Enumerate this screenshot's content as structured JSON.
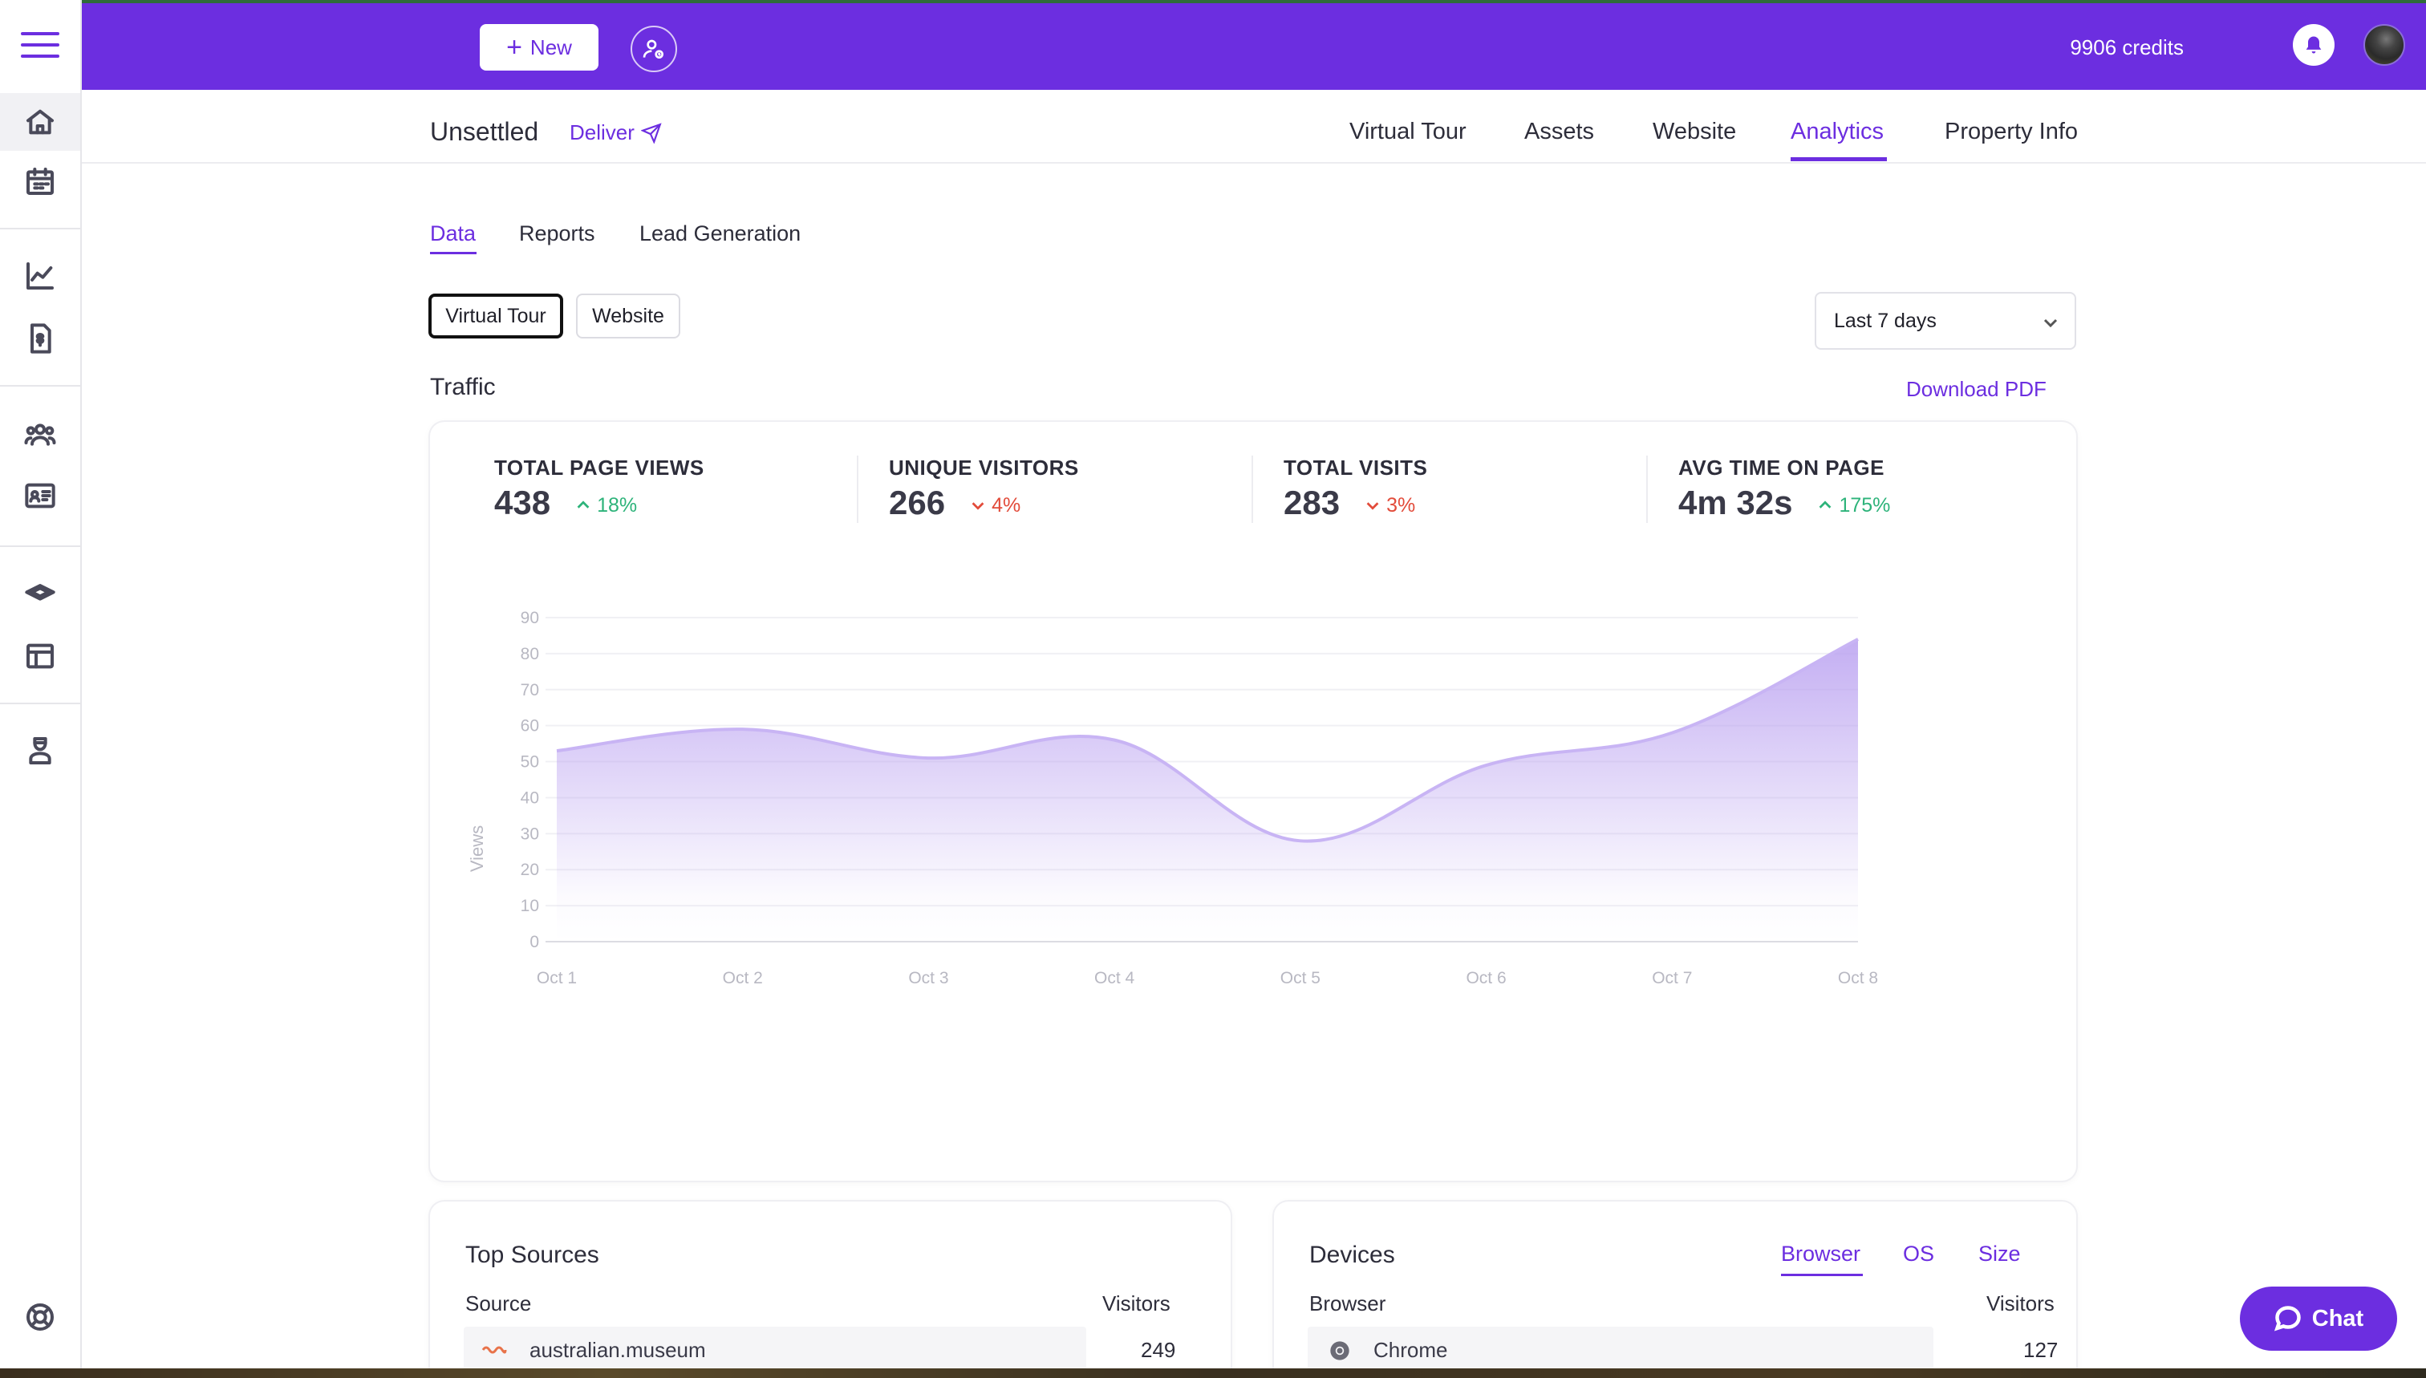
{
  "topbar": {
    "new_label": "New",
    "credits": "9906 credits"
  },
  "sidebar": {
    "items": [
      "home-icon",
      "calendar-icon",
      "line-chart-icon",
      "invoice-icon",
      "team-icon",
      "contact-card-icon",
      "layers-icon",
      "layout-icon",
      "agent-icon",
      "help-icon"
    ]
  },
  "subheader": {
    "title": "Unsettled",
    "deliver_label": "Deliver",
    "tabs": [
      {
        "label": "Virtual Tour",
        "active": false
      },
      {
        "label": "Assets",
        "active": false
      },
      {
        "label": "Website",
        "active": false
      },
      {
        "label": "Analytics",
        "active": true
      },
      {
        "label": "Property Info",
        "active": false
      }
    ]
  },
  "subtabs": [
    {
      "label": "Data",
      "active": true
    },
    {
      "label": "Reports",
      "active": false
    },
    {
      "label": "Lead Generation",
      "active": false
    }
  ],
  "segment": {
    "virtual_tour": "Virtual Tour",
    "website": "Website"
  },
  "date_range": {
    "selected": "Last 7 days"
  },
  "traffic": {
    "title": "Traffic",
    "download_label": "Download PDF",
    "stats": [
      {
        "label": "TOTAL PAGE VIEWS",
        "value": "438",
        "change": "18%",
        "direction": "up"
      },
      {
        "label": "UNIQUE VISITORS",
        "value": "266",
        "change": "4%",
        "direction": "down"
      },
      {
        "label": "TOTAL VISITS",
        "value": "283",
        "change": "3%",
        "direction": "down"
      },
      {
        "label": "AVG TIME ON PAGE",
        "value": "4m 32s",
        "change": "175%",
        "direction": "up"
      }
    ]
  },
  "chart_data": {
    "type": "area",
    "x": [
      "Oct 1",
      "Oct 2",
      "Oct 3",
      "Oct 4",
      "Oct 5",
      "Oct 6",
      "Oct 7",
      "Oct 8"
    ],
    "series": [
      {
        "values": [
          53,
          59,
          51,
          56,
          28,
          49,
          58,
          84
        ]
      }
    ],
    "ylabel": "Views",
    "ylim": [
      0,
      90
    ],
    "yticks": [
      0,
      10,
      20,
      30,
      40,
      50,
      60,
      70,
      80,
      90
    ],
    "grid": true,
    "fill_color": "#b9a0f0",
    "line_color": "#c8b4f4"
  },
  "top_sources": {
    "title": "Top Sources",
    "col_source": "Source",
    "col_visitors": "Visitors",
    "rows": [
      {
        "source": "australian.museum",
        "visitors": "249"
      }
    ]
  },
  "devices": {
    "title": "Devices",
    "tabs": [
      "Browser",
      "OS",
      "Size"
    ],
    "col_browser": "Browser",
    "col_visitors": "Visitors",
    "rows": [
      {
        "browser": "Chrome",
        "visitors": "127"
      }
    ]
  },
  "chat": {
    "label": "Chat"
  },
  "colors": {
    "accent": "#6c2ee0",
    "up": "#2db37a",
    "down": "#e24b3a"
  }
}
